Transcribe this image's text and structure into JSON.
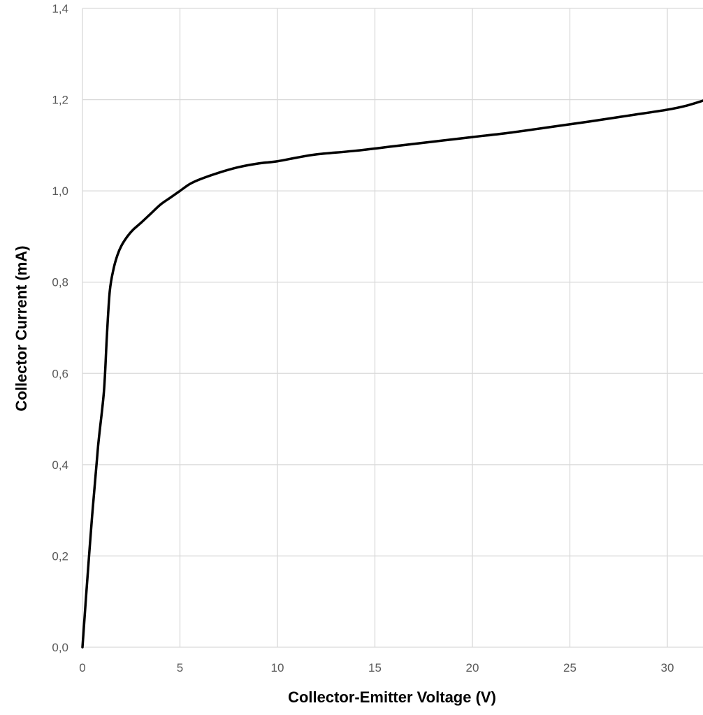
{
  "chart_data": {
    "type": "line",
    "title": "",
    "xlabel": "Collector-Emitter Voltage (V)",
    "ylabel": "Collector Current (mA)",
    "xlim": [
      0,
      32
    ],
    "ylim": [
      0,
      1.4
    ],
    "x_ticks": [
      0,
      5,
      10,
      15,
      20,
      25,
      30
    ],
    "x_tick_labels": [
      "0",
      "5",
      "10",
      "15",
      "20",
      "25",
      "30"
    ],
    "y_ticks": [
      0,
      0.2,
      0.4,
      0.6,
      0.8,
      1.0,
      1.2,
      1.4
    ],
    "y_tick_labels": [
      "0,0",
      "0,2",
      "0,4",
      "0,6",
      "0,8",
      "1,0",
      "1,2",
      "1,4"
    ],
    "grid": true,
    "legend": "none",
    "colors": {
      "line": "#000000",
      "grid": "#d9d9d9",
      "tick_text": "#595959"
    },
    "series": [
      {
        "x": [
          0,
          0.2,
          0.5,
          0.8,
          1.1,
          1.25,
          1.4,
          1.6,
          1.8,
          2.0,
          2.3,
          2.6,
          3.0,
          3.5,
          4.0,
          4.5,
          5.0,
          5.5,
          6.0,
          7.0,
          8.0,
          9.0,
          10.0,
          11.0,
          12.0,
          14.0,
          16.0,
          18.0,
          20.0,
          22.0,
          24.0,
          26.0,
          28.0,
          30.0,
          31.0,
          32.0
        ],
        "y": [
          0,
          0.12,
          0.29,
          0.44,
          0.56,
          0.68,
          0.78,
          0.83,
          0.86,
          0.88,
          0.9,
          0.915,
          0.93,
          0.95,
          0.97,
          0.985,
          1.0,
          1.015,
          1.025,
          1.04,
          1.052,
          1.06,
          1.065,
          1.073,
          1.08,
          1.088,
          1.098,
          1.108,
          1.118,
          1.128,
          1.14,
          1.152,
          1.165,
          1.178,
          1.187,
          1.2
        ]
      }
    ]
  }
}
